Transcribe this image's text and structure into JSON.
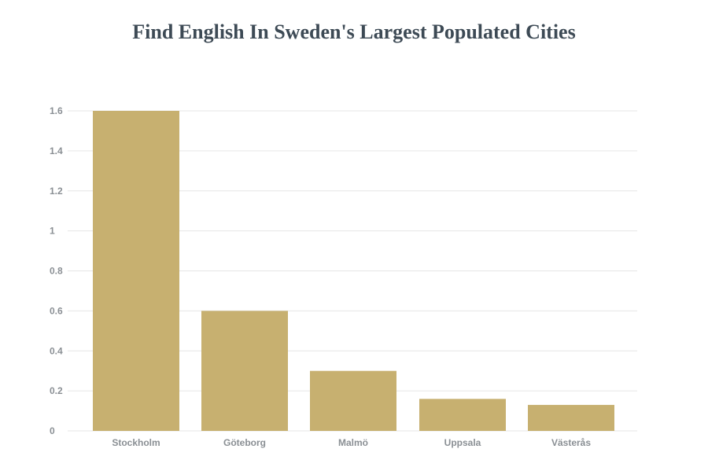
{
  "chart_data": {
    "type": "bar",
    "title": "Find English In Sweden's Largest Populated Cities",
    "xlabel": "",
    "ylabel": "",
    "categories": [
      "Stockholm",
      "Göteborg",
      "Malmö",
      "Uppsala",
      "Västerås"
    ],
    "values": [
      1.6,
      0.6,
      0.3,
      0.16,
      0.13
    ],
    "ylim": [
      0,
      1.6
    ],
    "yticks": [
      "0",
      "0.2",
      "0.4",
      "0.6",
      "0.8",
      "1",
      "1.2",
      "1.4",
      "1.6"
    ],
    "grid": true,
    "legend": "none",
    "colors": {
      "bar": "#c7b070",
      "grid": "#e6e6e6",
      "title": "#3d4a55",
      "tick": "#8a8f94"
    }
  }
}
